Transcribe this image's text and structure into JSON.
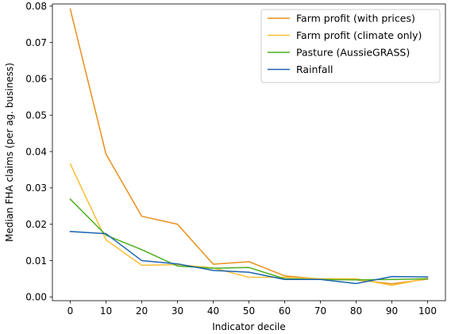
{
  "chart_data": {
    "type": "line",
    "title": "",
    "xlabel": "Indicator decile",
    "ylabel": "Median FHA claims (per ag. business)",
    "x": [
      0,
      10,
      20,
      30,
      40,
      50,
      60,
      70,
      80,
      90,
      100
    ],
    "xlim": [
      -5,
      105
    ],
    "ylim": [
      -0.00103,
      0.0806
    ],
    "xticks": [
      0,
      10,
      20,
      30,
      40,
      50,
      60,
      70,
      80,
      90,
      100
    ],
    "xtick_labels": [
      "0",
      "10",
      "20",
      "30",
      "40",
      "50",
      "60",
      "70",
      "80",
      "90",
      "100"
    ],
    "yticks": [
      0.0,
      0.01,
      0.02,
      0.03,
      0.04,
      0.05,
      0.06,
      0.07,
      0.08
    ],
    "ytick_labels": [
      "0.00",
      "0.01",
      "0.02",
      "0.03",
      "0.04",
      "0.05",
      "0.06",
      "0.07",
      "0.08"
    ],
    "grid": false,
    "legend_position": "top-right",
    "series": [
      {
        "name": "Farm profit (with prices)",
        "color": "#e8901a",
        "values": [
          0.0792,
          0.0393,
          0.0222,
          0.02,
          0.009,
          0.0097,
          0.0058,
          0.0049,
          0.0047,
          0.0036,
          0.0049
        ]
      },
      {
        "name": "Farm profit (climate only)",
        "color": "#f9bf35",
        "values": [
          0.0366,
          0.0157,
          0.0087,
          0.0089,
          0.008,
          0.0054,
          0.0054,
          0.005,
          0.005,
          0.0032,
          0.0051
        ]
      },
      {
        "name": "Pasture (AussieGRASS)",
        "color": "#4caf1f",
        "values": [
          0.0269,
          0.017,
          0.013,
          0.0085,
          0.0079,
          0.0081,
          0.005,
          0.0048,
          0.0047,
          0.0048,
          0.005
        ]
      },
      {
        "name": "Rainfall",
        "color": "#1c64b0",
        "values": [
          0.018,
          0.0174,
          0.01,
          0.0091,
          0.0073,
          0.0068,
          0.0048,
          0.0048,
          0.0037,
          0.0056,
          0.0055
        ]
      }
    ]
  }
}
